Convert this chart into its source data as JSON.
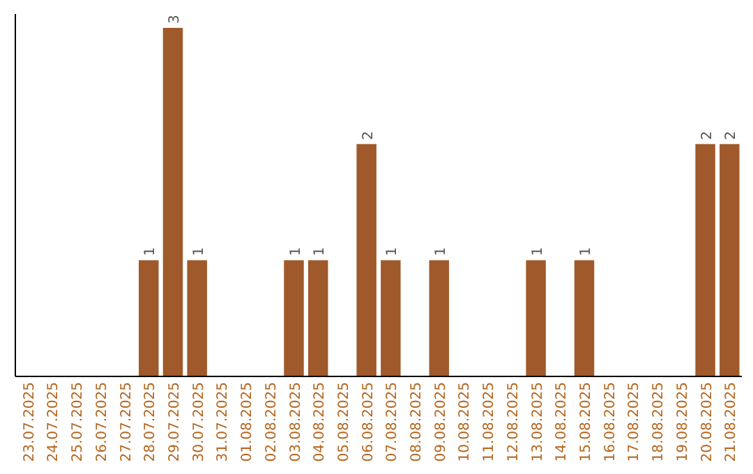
{
  "chart_data": {
    "type": "bar",
    "categories": [
      "23.07.2025",
      "24.07.2025",
      "25.07.2025",
      "26.07.2025",
      "27.07.2025",
      "28.07.2025",
      "29.07.2025",
      "30.07.2025",
      "31.07.2025",
      "01.08.2025",
      "02.08.2025",
      "03.08.2025",
      "04.08.2025",
      "05.08.2025",
      "06.08.2025",
      "07.08.2025",
      "08.08.2025",
      "09.08.2025",
      "10.08.2025",
      "11.08.2025",
      "12.08.2025",
      "13.08.2025",
      "14.08.2025",
      "15.08.2025",
      "16.08.2025",
      "17.08.2025",
      "18.08.2025",
      "19.08.2025",
      "20.08.2025",
      "21.08.2025"
    ],
    "values": [
      0,
      0,
      0,
      0,
      0,
      1,
      3,
      1,
      0,
      0,
      0,
      1,
      1,
      0,
      2,
      1,
      0,
      1,
      0,
      0,
      0,
      1,
      0,
      1,
      0,
      0,
      0,
      0,
      2,
      2
    ],
    "value_labels": [
      null,
      null,
      null,
      null,
      null,
      "1",
      "3",
      "1",
      null,
      null,
      null,
      "1",
      "1",
      null,
      "2",
      "1",
      null,
      "1",
      null,
      null,
      null,
      "1",
      null,
      "1",
      null,
      null,
      null,
      null,
      "2",
      "2"
    ],
    "color": "#a0592a",
    "tick_labels": "x"
  }
}
